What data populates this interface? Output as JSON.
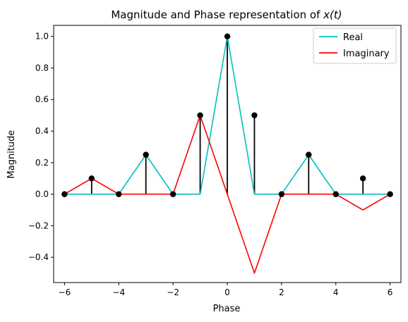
{
  "chart_data": {
    "type": "line",
    "title": "Magnitude and Phase representation of x(t)",
    "xlabel": "Phase",
    "ylabel": "Magnitude",
    "xlim": [
      -6.4,
      6.4
    ],
    "ylim": [
      -0.56,
      1.07
    ],
    "xticks": [
      -6,
      -4,
      -2,
      0,
      2,
      4,
      6
    ],
    "xtick_labels": [
      "−6",
      "−4",
      "−2",
      "0",
      "2",
      "4",
      "6"
    ],
    "yticks": [
      -0.4,
      -0.2,
      0.0,
      0.2,
      0.4,
      0.6,
      0.8,
      1.0
    ],
    "ytick_labels": [
      "−0.4",
      "−0.2",
      "0.0",
      "0.2",
      "0.4",
      "0.6",
      "0.8",
      "1.0"
    ],
    "grid": false,
    "legend_position": "top-right",
    "series": [
      {
        "name": "Real",
        "color": "#00bfbf",
        "x": [
          -6,
          -5,
          -4,
          -3,
          -2,
          -1,
          0,
          1,
          2,
          3,
          4,
          5,
          6
        ],
        "values": [
          0,
          0,
          0,
          0.25,
          0,
          0,
          1.0,
          0,
          0,
          0.25,
          0,
          0,
          0
        ]
      },
      {
        "name": "Imaginary",
        "color": "#ff0000",
        "x": [
          -6,
          -5,
          -4,
          -3,
          -2,
          -1,
          0,
          1,
          2,
          3,
          4,
          5,
          6
        ],
        "values": [
          0,
          0.1,
          0,
          0,
          0,
          0.5,
          0,
          -0.5,
          0,
          0,
          0,
          -0.1,
          0
        ]
      }
    ],
    "stems": {
      "color": "#000000",
      "x": [
        -6,
        -5,
        -4,
        -3,
        -2,
        -1,
        0,
        1,
        2,
        3,
        4,
        5,
        6
      ],
      "values": [
        0,
        0.1,
        0,
        0.25,
        0,
        0.5,
        1.0,
        0.5,
        0,
        0.25,
        0,
        0.1,
        0
      ]
    }
  }
}
